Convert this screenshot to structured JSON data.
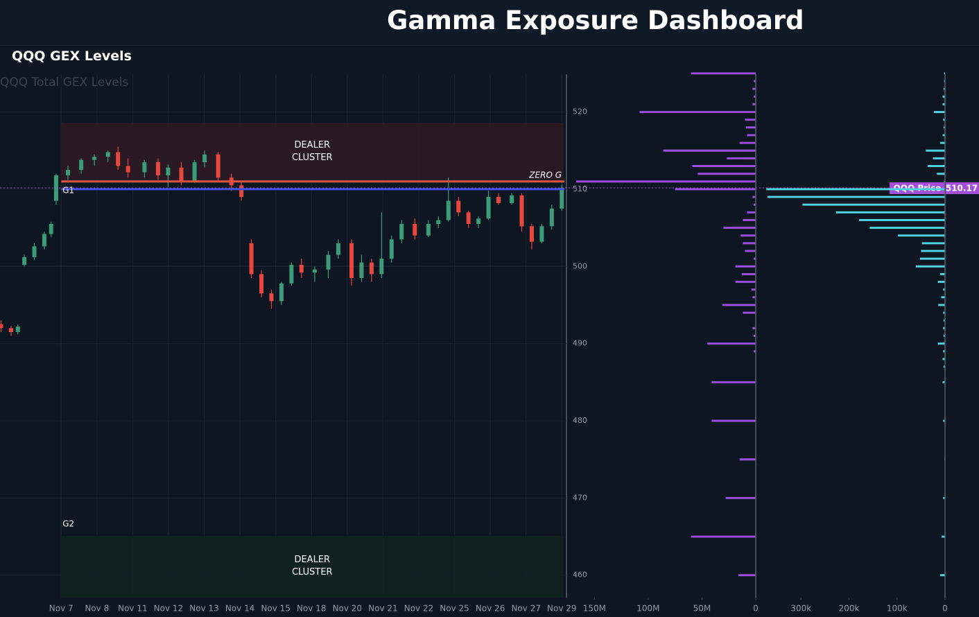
{
  "header": {
    "title": "Gamma Exposure Dashboard"
  },
  "panel": {
    "title": "QQQ GEX Levels"
  },
  "chart_data": [
    {
      "type": "candlestick",
      "title": "QQQ Total GEX Levels",
      "x": [
        -1.68,
        -1.4,
        -1.21,
        -1.03,
        -0.75,
        -0.47,
        -0.28,
        -0.14,
        0.19,
        0.56,
        0.93,
        1.31,
        1.59,
        1.87,
        2.33,
        2.71,
        2.99,
        3.36,
        3.73,
        4.01,
        4.39,
        4.76,
        5.04,
        5.32,
        5.6,
        5.88,
        6.16,
        6.44,
        6.72,
        7.09,
        7.47,
        7.75,
        8.12,
        8.4,
        8.68,
        8.96,
        9.24,
        9.52,
        9.89,
        10.27,
        10.55,
        10.83,
        11.11,
        11.39,
        11.67,
        11.95,
        12.23,
        12.6,
        12.88,
        13.16,
        13.44,
        13.72,
        14.0
      ],
      "open": [
        492.5,
        492,
        491.5,
        500.2,
        501.2,
        502.6,
        504.2,
        508.5,
        511.8,
        512.5,
        513.8,
        514.2,
        514.8,
        513,
        512.2,
        513.5,
        511.8,
        512.8,
        511,
        513.5,
        514.5,
        511.5,
        510.5,
        503,
        499,
        496.5,
        495.5,
        497.8,
        500.2,
        499.2,
        499.6,
        501.5,
        503,
        498.5,
        500.5,
        499,
        501,
        503.5,
        505.5,
        504,
        505.5,
        506,
        508.5,
        507,
        505.5,
        506.2,
        509,
        508.2,
        509.2,
        505.2,
        503.2,
        505.2,
        507.5
      ],
      "high": [
        493,
        492.3,
        492.5,
        501.5,
        503,
        504.5,
        505.8,
        512,
        513,
        514,
        514.5,
        515,
        515.5,
        514,
        513.8,
        514,
        513.2,
        513.5,
        513.8,
        515,
        514.8,
        512,
        511,
        503.5,
        499.5,
        497,
        498,
        500.5,
        501,
        500,
        502,
        503.5,
        503.5,
        501.5,
        501,
        507,
        504,
        506,
        506.2,
        506,
        506.5,
        511.5,
        509,
        507.2,
        506.5,
        509.8,
        509.5,
        509.5,
        509.5,
        505.5,
        505.5,
        508,
        510.6
      ],
      "low": [
        491.5,
        491,
        491.2,
        500,
        500.8,
        502.2,
        503.8,
        508,
        511.2,
        512,
        513,
        513.5,
        512.5,
        511.5,
        511.5,
        511.2,
        510.3,
        510.5,
        510.8,
        512.8,
        511,
        509.8,
        508.5,
        498.5,
        496,
        494.5,
        495,
        497.5,
        498.5,
        498,
        498.5,
        501,
        497.5,
        498,
        498,
        498.5,
        500.5,
        503,
        503.5,
        503.8,
        505,
        505.8,
        506.5,
        505,
        505,
        506,
        508,
        508,
        504.5,
        502.2,
        503,
        504.8,
        507.2
      ],
      "close": [
        492,
        491.5,
        492.2,
        501.2,
        502.6,
        504.2,
        505.5,
        511.8,
        512.5,
        513.8,
        514.2,
        514.8,
        513,
        512.2,
        513.5,
        511.8,
        512.8,
        511,
        513.5,
        514.5,
        511.5,
        510.5,
        509,
        499,
        496.5,
        495.5,
        497.8,
        500.2,
        499.2,
        499.6,
        501.5,
        503,
        498.5,
        500.5,
        499,
        501,
        503.5,
        505.5,
        504,
        505.5,
        506,
        508.5,
        507,
        505.5,
        506.2,
        509,
        508.2,
        509.2,
        505.2,
        503.2,
        505.2,
        507.5,
        510.2
      ],
      "up_color": "#3a9c78",
      "down_color": "#e8473d",
      "xlim": [
        -1.71,
        14.13
      ],
      "xticks": [
        {
          "value": 0,
          "label": "Nov 7"
        },
        {
          "value": 1,
          "label": "Nov 8"
        },
        {
          "value": 2,
          "label": "Nov 11"
        },
        {
          "value": 3,
          "label": "Nov 12"
        },
        {
          "value": 4,
          "label": "Nov 13"
        },
        {
          "value": 5,
          "label": "Nov 14"
        },
        {
          "value": 6,
          "label": "Nov 15"
        },
        {
          "value": 7,
          "label": "Nov 18"
        },
        {
          "value": 8,
          "label": "Nov 20"
        },
        {
          "value": 9,
          "label": "Nov 21"
        },
        {
          "value": 10,
          "label": "Nov 22"
        },
        {
          "value": 11,
          "label": "Nov 25"
        },
        {
          "value": 12,
          "label": "Nov 26"
        },
        {
          "value": 13,
          "label": "Nov 27"
        },
        {
          "value": 14,
          "label": "Nov 29"
        }
      ],
      "ylim": [
        457.1,
        524.9
      ],
      "yticks": [
        460,
        470,
        480,
        490,
        500,
        510,
        520
      ],
      "grid": true,
      "zones": [
        {
          "label": "DEALER CLUSTER",
          "xmin": 0,
          "xmax": 14.04,
          "ymin": 511,
          "ymax": 518.6,
          "color": "#2c1a24"
        },
        {
          "label": "DEALER CLUSTER",
          "xmin": 0,
          "xmax": 14.04,
          "ymin": 457.1,
          "ymax": 465.1,
          "color": "#112420"
        }
      ],
      "levels": [
        {
          "label": "ZERO G",
          "value": 511,
          "color": "#e0553f"
        },
        {
          "label": "G1",
          "value": 510,
          "color": "#4152e8"
        },
        {
          "label": "G2",
          "value": 466.6
        }
      ],
      "price_label": "QQQ Price",
      "price": 510.17,
      "price_color": "#a34fd8"
    },
    {
      "type": "bar",
      "orientation": "horizontal",
      "color": "#9b4fe0",
      "y": [
        460,
        465,
        470,
        475,
        480,
        485,
        489,
        490,
        491,
        492,
        494,
        495,
        496,
        497,
        498,
        499,
        500,
        501,
        502,
        503,
        504,
        505,
        506,
        507,
        508,
        509,
        510,
        511,
        512,
        513,
        514,
        515,
        516,
        517,
        518,
        519,
        520,
        521,
        522,
        523,
        524,
        525
      ],
      "values": [
        16,
        60,
        28,
        15,
        41,
        41,
        2,
        45,
        2,
        3,
        12,
        31,
        3,
        4,
        19,
        13,
        19,
        2,
        10,
        12,
        14,
        30,
        12,
        8,
        2,
        3,
        75,
        167,
        54,
        59,
        27,
        86,
        15,
        8,
        9,
        10,
        108,
        3,
        2,
        3,
        2,
        60
      ],
      "ylim": [
        457.1,
        524.9
      ],
      "xlim": [
        176,
        0
      ],
      "xticks": [
        {
          "value": 150,
          "label": "150M"
        },
        {
          "value": 100,
          "label": "100M"
        },
        {
          "value": 50,
          "label": "50M"
        },
        0
      ]
    },
    {
      "type": "bar",
      "orientation": "horizontal",
      "color": "#4fd1e0",
      "y": [
        460,
        465,
        470,
        475,
        480,
        485,
        487,
        488,
        489,
        490,
        491,
        492,
        493,
        494,
        495,
        496,
        497,
        498,
        499,
        500,
        501,
        502,
        503,
        504,
        505,
        506,
        507,
        508,
        509,
        510,
        511,
        512,
        513,
        514,
        515,
        516,
        517,
        518,
        519,
        520,
        521,
        522,
        523,
        524,
        525
      ],
      "values": [
        10,
        7,
        4,
        1,
        4,
        5,
        3,
        5,
        4,
        15,
        3,
        4,
        3,
        4,
        14,
        8,
        4,
        15,
        10,
        61,
        52,
        50,
        48,
        98,
        157,
        179,
        227,
        297,
        370,
        372,
        2,
        17,
        36,
        25,
        40,
        10,
        5,
        3,
        4,
        23,
        5,
        5,
        3,
        2,
        2
      ],
      "ylim": [
        457.1,
        524.9
      ],
      "xlim": [
        387,
        0
      ],
      "xticks": [
        {
          "value": 300,
          "label": "300k"
        },
        {
          "value": 200,
          "label": "200k"
        },
        {
          "value": 100,
          "label": "100k"
        },
        0
      ]
    }
  ]
}
